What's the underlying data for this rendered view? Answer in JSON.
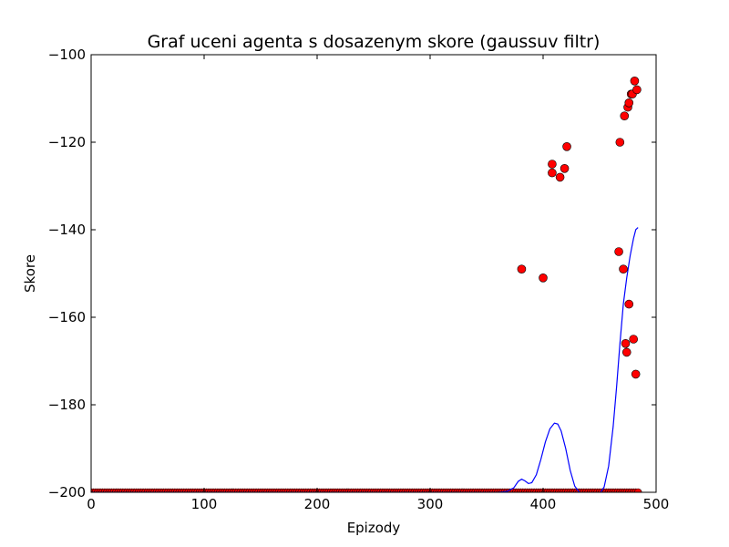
{
  "chart_data": {
    "type": "scatter",
    "title": "Graf uceni agenta s dosazenym skore (gaussuv filtr)",
    "xlabel": "Epizody",
    "ylabel": "Skore",
    "xlim": [
      0,
      500
    ],
    "ylim": [
      -200,
      -100
    ],
    "xticks": [
      0,
      100,
      200,
      300,
      400,
      500
    ],
    "yticks": [
      -200,
      -180,
      -160,
      -140,
      -120,
      -100
    ],
    "grid": false,
    "baseline": {
      "value": -200,
      "x_start": 0,
      "x_end": 484,
      "step": 2
    },
    "series": [
      {
        "name": "Skore",
        "kind": "scatter",
        "color": "#ff0000",
        "edge_color": "#000000",
        "points": [
          [
            381,
            -149
          ],
          [
            400,
            -151
          ],
          [
            408,
            -125
          ],
          [
            408,
            -127
          ],
          [
            415,
            -128
          ],
          [
            419,
            -126
          ],
          [
            421,
            -121
          ],
          [
            467,
            -145
          ],
          [
            468,
            -120
          ],
          [
            471,
            -149
          ],
          [
            472,
            -114
          ],
          [
            473,
            -166
          ],
          [
            474,
            -168
          ],
          [
            475,
            -112
          ],
          [
            476,
            -111
          ],
          [
            476,
            -157
          ],
          [
            478,
            -109
          ],
          [
            479,
            -109
          ],
          [
            480,
            -165
          ],
          [
            481,
            -106
          ],
          [
            482,
            -173
          ],
          [
            483,
            -108
          ]
        ]
      },
      {
        "name": "Gaussuv filtr",
        "kind": "line",
        "color": "#0000ff",
        "points": [
          [
            0,
            -200
          ],
          [
            360,
            -200
          ],
          [
            368,
            -199.8
          ],
          [
            374,
            -199
          ],
          [
            378,
            -197.5
          ],
          [
            381,
            -197
          ],
          [
            384,
            -197.4
          ],
          [
            387,
            -198
          ],
          [
            390,
            -197.8
          ],
          [
            394,
            -196
          ],
          [
            398,
            -192.5
          ],
          [
            402,
            -188.5
          ],
          [
            406,
            -185.5
          ],
          [
            410,
            -184.2
          ],
          [
            413,
            -184.4
          ],
          [
            416,
            -186
          ],
          [
            420,
            -190
          ],
          [
            424,
            -195
          ],
          [
            428,
            -198.6
          ],
          [
            432,
            -200
          ],
          [
            436,
            -200.6
          ],
          [
            441,
            -200.8
          ],
          [
            446,
            -200.8
          ],
          [
            450,
            -200.3
          ],
          [
            454,
            -198.8
          ],
          [
            458,
            -194
          ],
          [
            462,
            -185
          ],
          [
            465,
            -176
          ],
          [
            468,
            -166
          ],
          [
            471,
            -157
          ],
          [
            474,
            -151
          ],
          [
            477,
            -146
          ],
          [
            480,
            -142
          ],
          [
            482,
            -140
          ],
          [
            484,
            -139.5
          ]
        ]
      }
    ]
  }
}
